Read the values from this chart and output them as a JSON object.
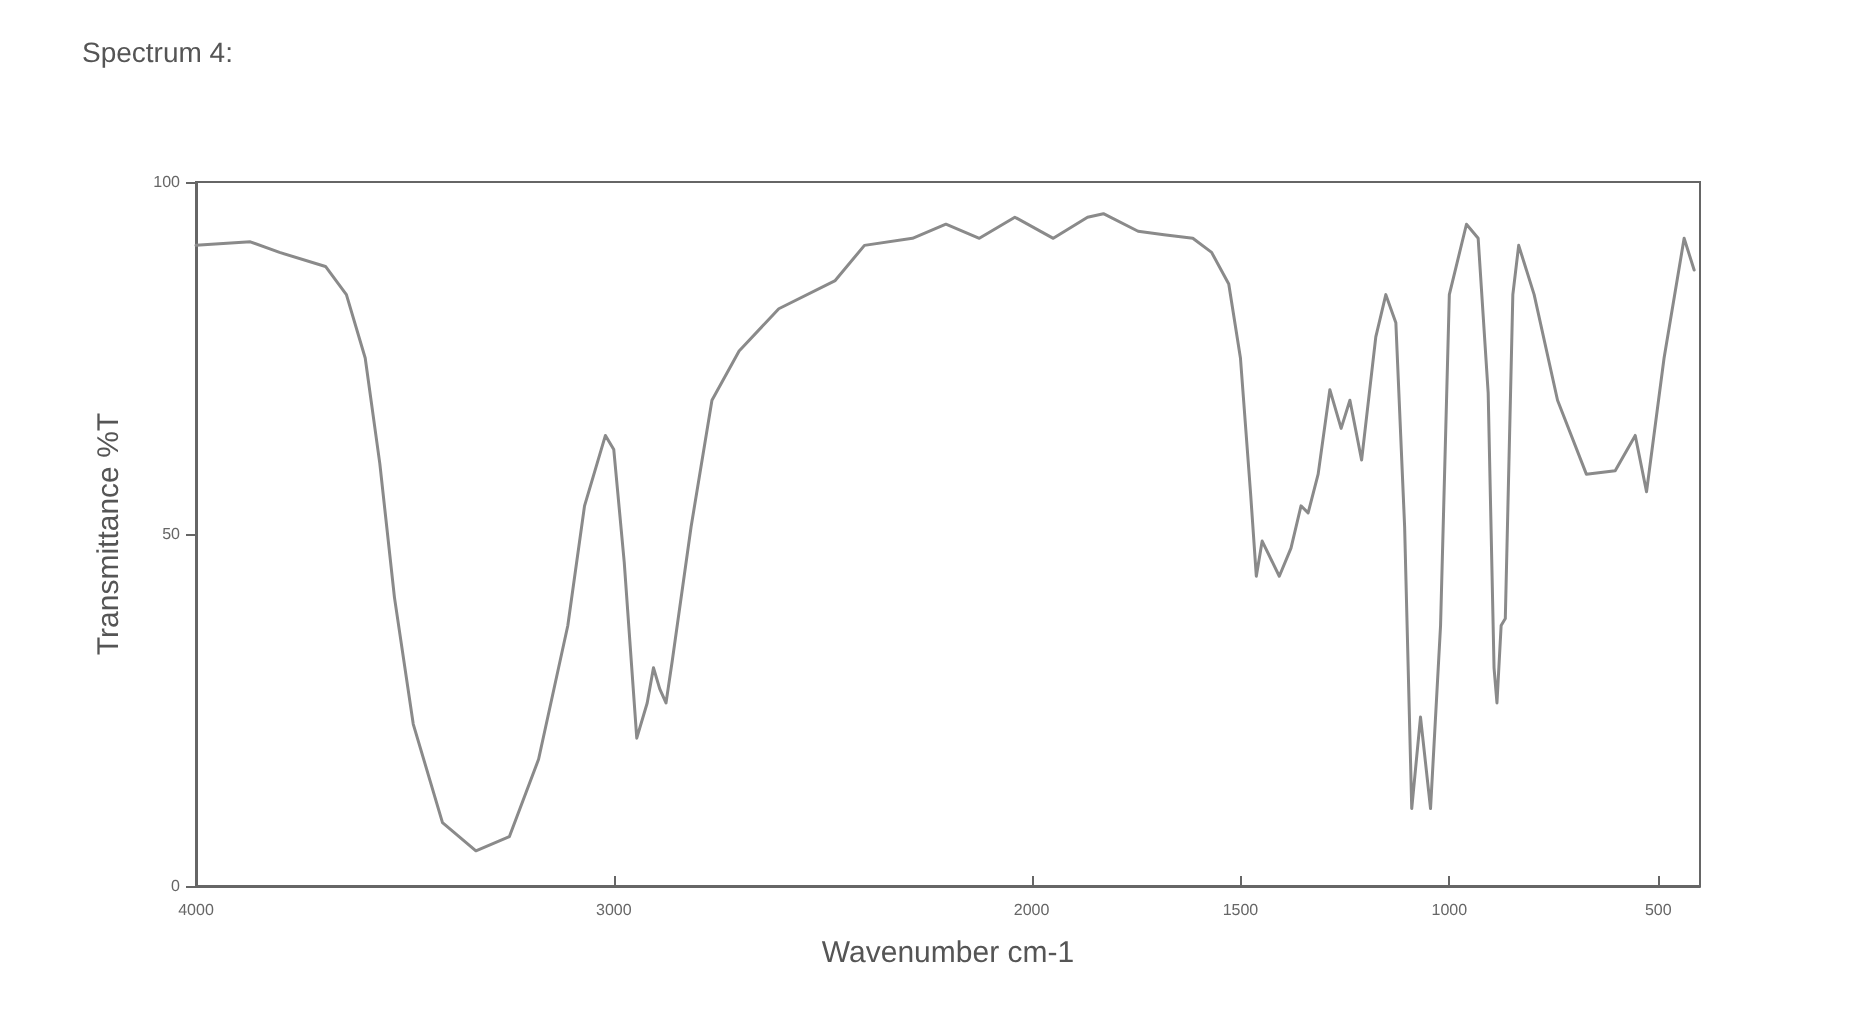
{
  "chart_data": {
    "type": "line",
    "title": "Spectrum 4:",
    "xlabel": "Wavenumber cm-1",
    "ylabel": "Transmittance %T",
    "xlim": [
      4000,
      400
    ],
    "xticks": [
      4000,
      3000,
      2000,
      1500,
      1000,
      500
    ],
    "ylim": [
      0,
      100
    ],
    "yticks": [
      0,
      50,
      100
    ],
    "grid": false,
    "marker": "none",
    "line_style": "solid",
    "series": [
      {
        "color": "#8a8a8a",
        "x": [
          4000,
          3870,
          3800,
          3690,
          3640,
          3595,
          3560,
          3525,
          3480,
          3410,
          3330,
          3250,
          3180,
          3110,
          3070,
          3020,
          3000,
          2975,
          2945,
          2920,
          2905,
          2890,
          2875,
          2860,
          2815,
          2765,
          2700,
          2605,
          2470,
          2400,
          2285,
          2205,
          2125,
          2040,
          1948,
          1866,
          1828,
          1745,
          1683,
          1614,
          1569,
          1528,
          1500,
          1476,
          1462,
          1448,
          1407,
          1379,
          1355,
          1338,
          1314,
          1286,
          1259,
          1238,
          1210,
          1176,
          1152,
          1128,
          1107,
          1090,
          1069,
          1045,
          1021,
          1000,
          959,
          931,
          907,
          893,
          886,
          876,
          866,
          848,
          834,
          797,
          741,
          672,
          603,
          555,
          528,
          486,
          438,
          414
        ],
        "values": [
          91,
          91.5,
          90,
          88,
          84,
          75,
          60,
          41,
          23,
          9,
          5,
          7,
          18,
          37,
          54,
          64,
          62,
          46,
          21,
          26,
          31,
          28,
          26,
          32,
          51,
          69,
          76,
          82,
          86,
          91,
          92,
          94,
          92,
          95,
          92,
          95,
          95.5,
          93,
          92.5,
          92,
          90,
          85.5,
          75,
          56,
          44,
          49,
          44,
          48,
          54,
          53,
          58.5,
          70.5,
          65,
          69,
          60.5,
          78,
          84,
          80,
          51,
          11,
          24,
          11,
          37,
          84,
          94,
          92,
          70,
          31,
          26,
          37,
          38,
          84,
          91,
          84,
          69,
          58.5,
          59,
          64,
          56,
          75,
          92,
          87.5
        ]
      }
    ]
  }
}
